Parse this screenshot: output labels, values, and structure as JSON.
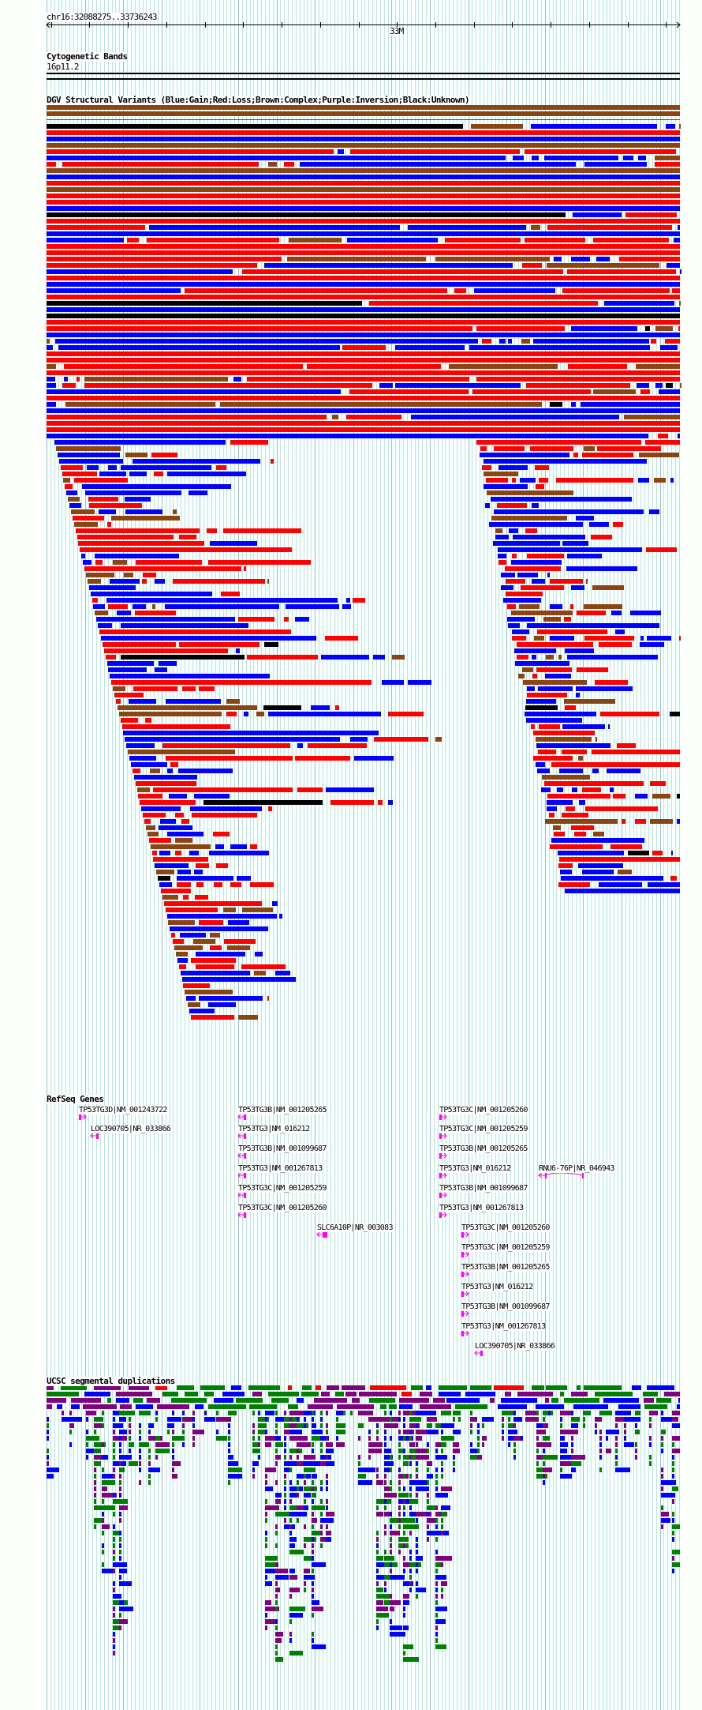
{
  "ruler": {
    "location": "chr16:32088275..33736243",
    "start": 32088275,
    "end": 33736243,
    "major_label": "33M",
    "major_value": 33000000
  },
  "cytogenetic_bands": {
    "title": "Cytogenetic Bands",
    "band": "16p11.2"
  },
  "dgv": {
    "title": "DGV Structural Variants (Blue:Gain;Red:Loss;Brown:Complex;Purple:Inversion;Black:Unknown)",
    "legend": [
      {
        "color_name": "Blue",
        "meaning": "Gain",
        "color": "#0000ff"
      },
      {
        "color_name": "Red",
        "meaning": "Loss",
        "color": "#ff0000"
      },
      {
        "color_name": "Brown",
        "meaning": "Complex",
        "color": "#8b4513"
      },
      {
        "color_name": "Purple",
        "meaning": "Inversion",
        "color": "#4b0082"
      },
      {
        "color_name": "Black",
        "meaning": "Unknown",
        "color": "#000000"
      }
    ]
  },
  "refseq": {
    "title": "RefSeq Genes",
    "color": "#ff00ff",
    "genes": [
      {
        "label": "TP53TG3D|NM_001243722",
        "strand": "+"
      },
      {
        "label": "LOC390705|NR_033866",
        "strand": "-"
      },
      {
        "label": "TP53TG3B|NM_001205265",
        "strand": "-"
      },
      {
        "label": "TP53TG3|NM_016212",
        "strand": "-"
      },
      {
        "label": "TP53TG3B|NM_001099687",
        "strand": "-"
      },
      {
        "label": "TP53TG3|NM_001267813",
        "strand": "-"
      },
      {
        "label": "TP53TG3C|NM_001205259",
        "strand": "-"
      },
      {
        "label": "TP53TG3C|NM_001205260",
        "strand": "-"
      },
      {
        "label": "SLC6A10P|NR_003083",
        "strand": "-"
      },
      {
        "label": "TP53TG3C|NM_001205260",
        "strand": "+"
      },
      {
        "label": "TP53TG3C|NM_001205259",
        "strand": "+"
      },
      {
        "label": "TP53TG3B|NM_001205265",
        "strand": "+"
      },
      {
        "label": "TP53TG3|NM_016212",
        "strand": "+"
      },
      {
        "label": "TP53TG3B|NM_001099687",
        "strand": "+"
      },
      {
        "label": "TP53TG3|NM_001267813",
        "strand": "+"
      },
      {
        "label": "RNU6-76P|NR_046943",
        "strand": "-"
      },
      {
        "label": "TP53TG3C|NM_001205260",
        "strand": "+"
      },
      {
        "label": "TP53TG3C|NM_001205259",
        "strand": "+"
      },
      {
        "label": "TP53TG3B|NM_001205265",
        "strand": "+"
      },
      {
        "label": "TP53TG3|NM_016212",
        "strand": "+"
      },
      {
        "label": "TP53TG3B|NM_001099687",
        "strand": "+"
      },
      {
        "label": "TP53TG3|NM_001267813",
        "strand": "+"
      },
      {
        "label": "LOC390705|NR_033866",
        "strand": "-"
      }
    ]
  },
  "segdups": {
    "title": "UCSC segmental duplications",
    "colors": [
      "#ff0000",
      "#0000ff",
      "#008000",
      "#800080"
    ]
  },
  "grid": {
    "minor_color": "#b0ecec",
    "major_color": "#8ec5e6"
  }
}
